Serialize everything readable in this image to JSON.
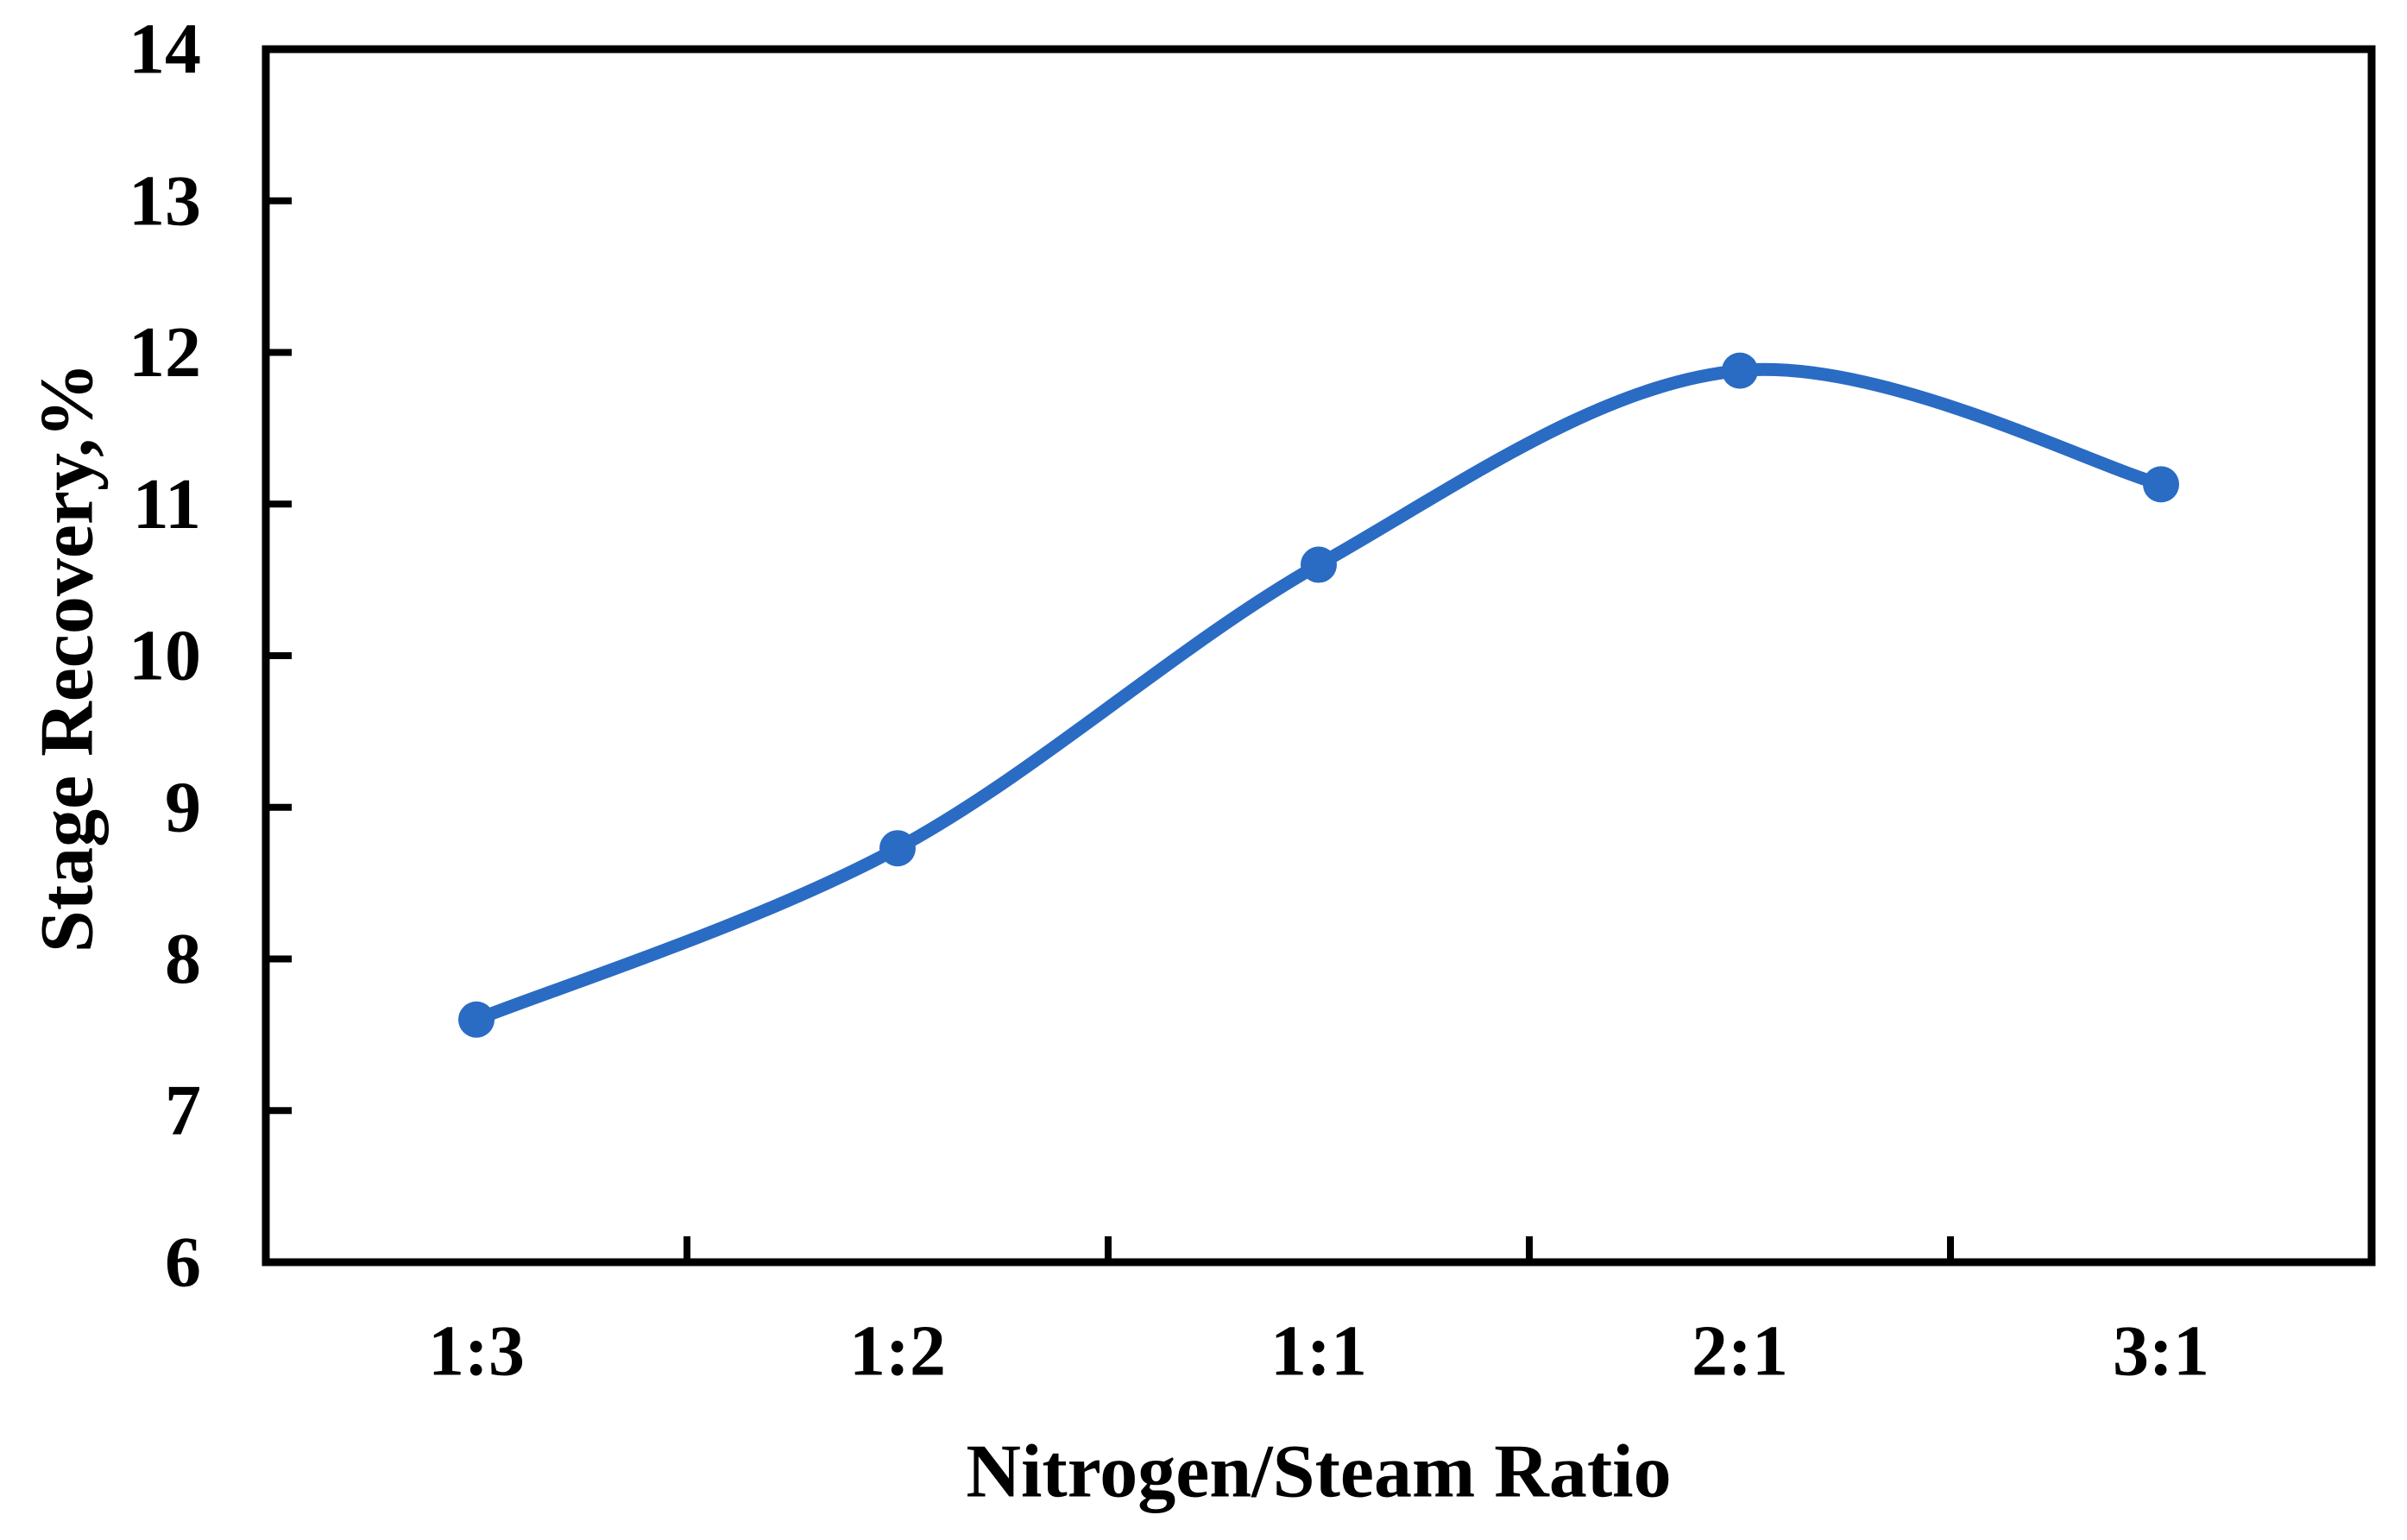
{
  "chart_data": {
    "type": "line",
    "title": "",
    "categories": [
      "1:3",
      "1:2",
      "1:1",
      "2:1",
      "3:1"
    ],
    "values": [
      7.6,
      8.73,
      10.6,
      11.88,
      11.13
    ],
    "xlabel": "Nitrogen/Steam Ratio",
    "ylabel": "Stage Recovery,%",
    "ylim": [
      6,
      14
    ],
    "ytick_step": 1,
    "grid": "off",
    "legend": "none",
    "line_color": "#2a6bc4",
    "marker_shape": "circle",
    "axis_color": "#000000",
    "background_color": "#ffffff"
  }
}
